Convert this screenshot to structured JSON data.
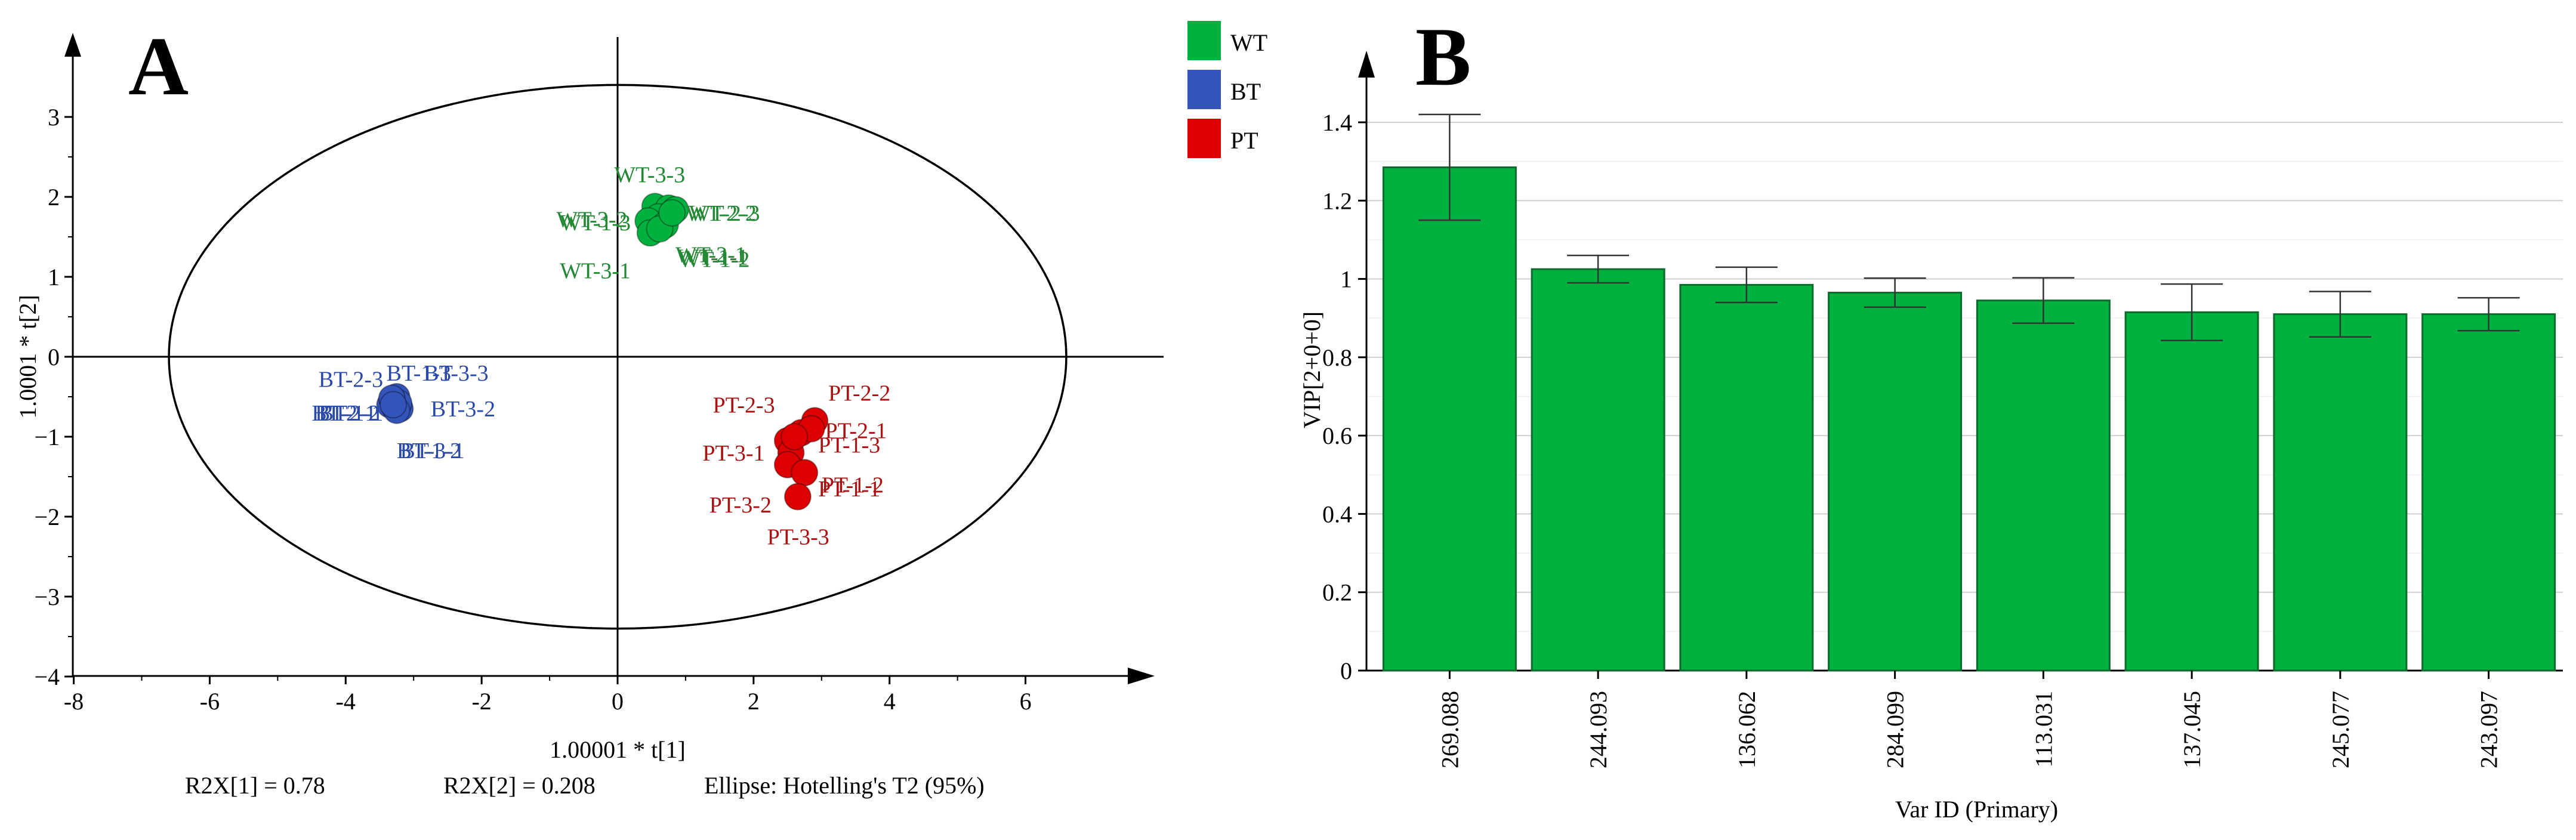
{
  "chart_data": [
    {
      "type": "scatter",
      "panel": "A",
      "xlabel": "1.00001 * t[1]",
      "ylabel": "1.0001 * t[2]",
      "xlim": [
        -8,
        8
      ],
      "ylim": [
        -4,
        4
      ],
      "xticks": [
        "-8",
        "-6",
        "-4",
        "-2",
        "0",
        "2",
        "4",
        "6"
      ],
      "yticks": [
        "−4",
        "−3",
        "−2",
        "−1",
        "0",
        "1",
        "2",
        "3"
      ],
      "ellipse": {
        "center": [
          0,
          0
        ],
        "rx": 6.6,
        "ry": 3.4
      },
      "legend": [
        {
          "name": "WT",
          "color": "#00b140"
        },
        {
          "name": "BT",
          "color": "#3355bb"
        },
        {
          "name": "PT",
          "color": "#dd0000"
        }
      ],
      "series": [
        {
          "name": "WT",
          "color": "#00b140",
          "label_color": "#228833",
          "points": [
            {
              "x": 0.55,
              "y": 1.88
            },
            {
              "x": 0.75,
              "y": 1.86
            },
            {
              "x": 0.85,
              "y": 1.84
            },
            {
              "x": 0.6,
              "y": 1.75
            },
            {
              "x": 0.45,
              "y": 1.7
            },
            {
              "x": 0.7,
              "y": 1.65
            },
            {
              "x": 0.48,
              "y": 1.55
            },
            {
              "x": 0.62,
              "y": 1.6
            },
            {
              "x": 0.8,
              "y": 1.8
            }
          ],
          "labels": [
            {
              "text": "WT-3-3",
              "x": -0.05,
              "y": 2.28
            },
            {
              "text": "WT-3-2",
              "x": -0.9,
              "y": 1.72
            },
            {
              "text": "WT-1-3",
              "x": -0.85,
              "y": 1.68
            },
            {
              "text": "WT-2-3",
              "x": 1.05,
              "y": 1.8
            },
            {
              "text": "WT-2-2",
              "x": 1.0,
              "y": 1.8
            },
            {
              "text": "WT-2-1",
              "x": 0.85,
              "y": 1.28
            },
            {
              "text": "WT-1-2",
              "x": 0.9,
              "y": 1.22
            },
            {
              "text": "WT-1-1",
              "x": 0.88,
              "y": 1.25
            },
            {
              "text": "WT-3-1",
              "x": -0.85,
              "y": 1.08
            }
          ]
        },
        {
          "name": "BT",
          "color": "#3355bb",
          "label_color": "#2b4aa8",
          "points": [
            {
              "x": -3.25,
              "y": -0.5
            },
            {
              "x": -3.35,
              "y": -0.6
            },
            {
              "x": -3.2,
              "y": -0.65
            },
            {
              "x": -3.3,
              "y": -0.55
            },
            {
              "x": -3.28,
              "y": -0.62
            },
            {
              "x": -3.22,
              "y": -0.58
            },
            {
              "x": -3.32,
              "y": -0.52
            },
            {
              "x": -3.25,
              "y": -0.67
            },
            {
              "x": -3.3,
              "y": -0.6
            }
          ],
          "labels": [
            {
              "text": "BT-2-3",
              "x": -4.4,
              "y": -0.28
            },
            {
              "text": "BT-1-3",
              "x": -3.4,
              "y": -0.2
            },
            {
              "text": "BT-3-3",
              "x": -2.85,
              "y": -0.2
            },
            {
              "text": "BT-2-1",
              "x": -4.5,
              "y": -0.7
            },
            {
              "text": "BT-2-2",
              "x": -4.45,
              "y": -0.7
            },
            {
              "text": "BT-1-1",
              "x": -4.4,
              "y": -0.7
            },
            {
              "text": "BT-3-2",
              "x": -2.75,
              "y": -0.65
            },
            {
              "text": "BT-1-2",
              "x": -3.25,
              "y": -1.17
            },
            {
              "text": "BT-3-1",
              "x": -3.2,
              "y": -1.17
            }
          ]
        },
        {
          "name": "PT",
          "color": "#dd0000",
          "label_color": "#aa1111",
          "points": [
            {
              "x": 2.9,
              "y": -0.8
            },
            {
              "x": 2.7,
              "y": -0.95
            },
            {
              "x": 2.5,
              "y": -1.05
            },
            {
              "x": 2.55,
              "y": -1.2
            },
            {
              "x": 2.5,
              "y": -1.35
            },
            {
              "x": 2.85,
              "y": -0.9
            },
            {
              "x": 2.6,
              "y": -1.0
            },
            {
              "x": 2.75,
              "y": -1.45
            },
            {
              "x": 2.65,
              "y": -1.75
            }
          ],
          "labels": [
            {
              "text": "PT-2-3",
              "x": 1.4,
              "y": -0.6
            },
            {
              "text": "PT-2-2",
              "x": 3.1,
              "y": -0.45
            },
            {
              "text": "PT-2-1",
              "x": 3.05,
              "y": -0.92
            },
            {
              "text": "PT-3-1",
              "x": 1.25,
              "y": -1.2
            },
            {
              "text": "PT-1-3",
              "x": 2.95,
              "y": -1.1
            },
            {
              "text": "PT-1-2",
              "x": 3.0,
              "y": -1.6
            },
            {
              "text": "PT-1-1",
              "x": 2.95,
              "y": -1.65
            },
            {
              "text": "PT-3-2",
              "x": 1.35,
              "y": -1.85
            },
            {
              "text": "PT-3-3",
              "x": 2.2,
              "y": -2.25
            }
          ]
        }
      ],
      "stats": [
        "R2X[1] = 0.78",
        "R2X[2] = 0.208",
        "Ellipse: Hotelling's T2 (95%)"
      ]
    },
    {
      "type": "bar",
      "panel": "B",
      "xlabel": "Var ID (Primary)",
      "ylabel": "VIP[2+0+0]",
      "ylim": [
        0,
        1.5
      ],
      "yticks": [
        "0",
        "0.2",
        "0.4",
        "0.6",
        "0.8",
        "1",
        "1.2",
        "1.4"
      ],
      "bar_color": "#00b140",
      "categories": [
        "269.088",
        "244.093",
        "136.062",
        "284.099",
        "113.031",
        "137.045",
        "245.077",
        "243.097"
      ],
      "values": [
        1.285,
        1.025,
        0.985,
        0.965,
        0.945,
        0.915,
        0.91,
        0.91
      ],
      "errors": [
        0.135,
        0.035,
        0.045,
        0.037,
        0.058,
        0.072,
        0.058,
        0.042
      ]
    }
  ]
}
